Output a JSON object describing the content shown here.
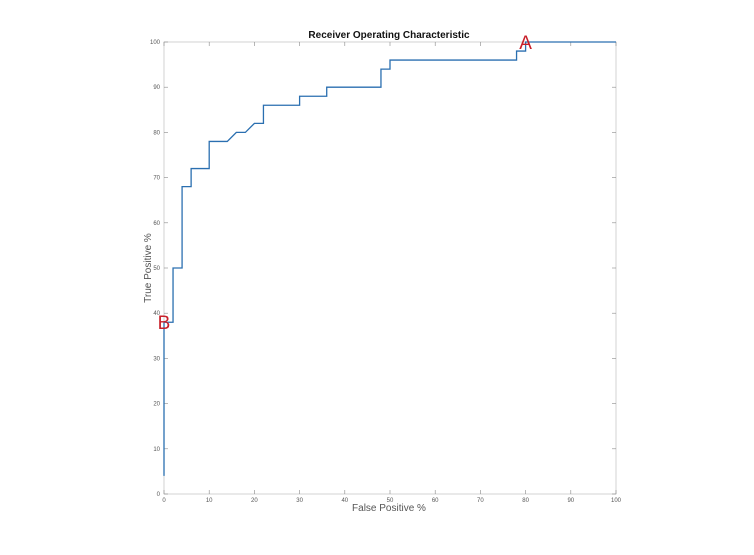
{
  "chart_data": {
    "type": "line",
    "title": "Receiver Operating Characteristic",
    "xlabel": "False Positive %",
    "ylabel": "True Positive %",
    "xlim": [
      0,
      100
    ],
    "ylim": [
      0,
      100
    ],
    "xticks": [
      0,
      10,
      20,
      30,
      40,
      50,
      60,
      70,
      80,
      90,
      100
    ],
    "yticks": [
      0,
      10,
      20,
      30,
      40,
      50,
      60,
      70,
      80,
      90,
      100
    ],
    "grid": false,
    "legend": "none",
    "line_color": "#2a6fb0",
    "series": [
      {
        "x": [
          0,
          0,
          2,
          2,
          4,
          4,
          6,
          6,
          10,
          10,
          14,
          16,
          18,
          20,
          22,
          22,
          30,
          30,
          36,
          36,
          48,
          48,
          50,
          50,
          78,
          78,
          80,
          80,
          100
        ],
        "y": [
          4,
          38,
          38,
          50,
          50,
          68,
          68,
          72,
          72,
          78,
          78,
          80,
          80,
          82,
          82,
          86,
          86,
          88,
          88,
          90,
          90,
          94,
          94,
          96,
          96,
          98,
          98,
          100,
          100
        ]
      }
    ],
    "annotations": [
      {
        "text": "A",
        "x": 80,
        "y": 100,
        "color": "#c8202a"
      },
      {
        "text": "B",
        "x": 0,
        "y": 38,
        "color": "#c8202a"
      }
    ]
  }
}
